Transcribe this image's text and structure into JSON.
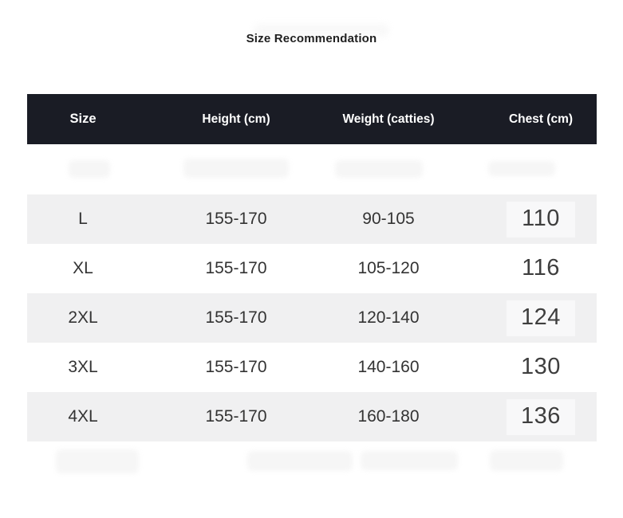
{
  "page": {
    "title": "Size Recommendation"
  },
  "colors": {
    "header_bg": "#1a1c25",
    "header_text": "#ffffff",
    "row_alt_bg": "#f0f0f1",
    "cell_text": "#333333",
    "chest_text": "#3e3e3e",
    "page_bg": "#ffffff"
  },
  "table": {
    "columns": [
      {
        "key": "size",
        "label": "Size"
      },
      {
        "key": "height",
        "label": "Height (cm)"
      },
      {
        "key": "weight",
        "label": "Weight (catties)"
      },
      {
        "key": "chest",
        "label": "Chest (cm)"
      }
    ],
    "rows": [
      {
        "size": "L",
        "height": "155-170",
        "weight": "90-105",
        "chest": "110"
      },
      {
        "size": "XL",
        "height": "155-170",
        "weight": "105-120",
        "chest": "116"
      },
      {
        "size": "2XL",
        "height": "155-170",
        "weight": "120-140",
        "chest": "124"
      },
      {
        "size": "3XL",
        "height": "155-170",
        "weight": "140-160",
        "chest": "130"
      },
      {
        "size": "4XL",
        "height": "155-170",
        "weight": "160-180",
        "chest": "136"
      }
    ]
  }
}
